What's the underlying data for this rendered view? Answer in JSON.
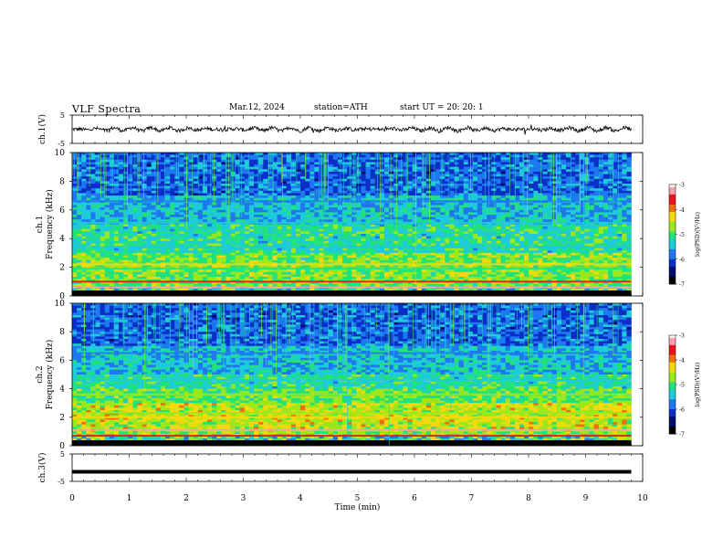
{
  "header": {
    "title": "VLF  Spectra",
    "date": "Mar.12, 2024",
    "station": "station=ATH",
    "start": "start  UT  =    20: 20: 1"
  },
  "chart_data": [
    {
      "type": "line",
      "ylabel": "ch.1(V)",
      "ylim": [
        -5,
        5
      ],
      "yticks": [
        "5",
        "-5"
      ],
      "x_range": [
        0,
        10
      ],
      "series": [
        {
          "values_description_free": true,
          "values": [
            0,
            0.3,
            -0.4,
            0.2,
            -0.3,
            0.4,
            -0.2,
            0.1,
            -0.5,
            0.3,
            -0.1,
            0.2,
            -0.3,
            0.4,
            -0.2,
            0.1,
            -0.4,
            0.2,
            -0.1,
            0.3
          ]
        }
      ]
    },
    {
      "type": "heatmap",
      "ylabel": "ch.1",
      "ylabel2": "Frequency  (kHz)",
      "ylim": [
        0,
        10
      ],
      "yticks": [
        "10",
        "8",
        "6",
        "4",
        "2",
        "0"
      ],
      "x_range": [
        0,
        9.8
      ],
      "colorbar": {
        "label": "log(PSD)(V²/Hz)",
        "ticks": [
          "-3",
          "-4",
          "-5",
          "-6",
          "-7"
        ],
        "range": [
          -7,
          -3
        ]
      }
    },
    {
      "type": "heatmap",
      "ylabel": "ch.2",
      "ylabel2": "Frequency  (kHz)",
      "ylim": [
        0,
        10
      ],
      "yticks": [
        "10",
        "8",
        "6",
        "4",
        "2",
        "0"
      ],
      "x_range": [
        0,
        9.8
      ],
      "colorbar": {
        "label": "log(PSD)(V²/Hz)",
        "ticks": [
          "-3",
          "-4",
          "-5",
          "-6",
          "-7"
        ],
        "range": [
          -7,
          -3
        ]
      }
    },
    {
      "type": "line",
      "ylabel": "ch.3(V)",
      "ylim": [
        -5,
        5
      ],
      "yticks": [
        "5",
        "-5"
      ],
      "x_range": [
        0,
        9.8
      ],
      "series": [
        {
          "values": [
            -1.5,
            -1.5
          ]
        }
      ]
    }
  ],
  "xaxis": {
    "label": "Time  (min)",
    "ticks": [
      "0",
      "1",
      "2",
      "3",
      "4",
      "5",
      "6",
      "7",
      "8",
      "9",
      "10"
    ],
    "xlim": [
      0,
      10
    ]
  },
  "colors": {
    "colormap": [
      "#000000",
      "#000c6e",
      "#0a2fc8",
      "#1e78f0",
      "#1ecbd8",
      "#22e37a",
      "#9be81c",
      "#f4d90e",
      "#f26d10",
      "#e8141a",
      "#ff9fb0",
      "#ffffff"
    ]
  }
}
